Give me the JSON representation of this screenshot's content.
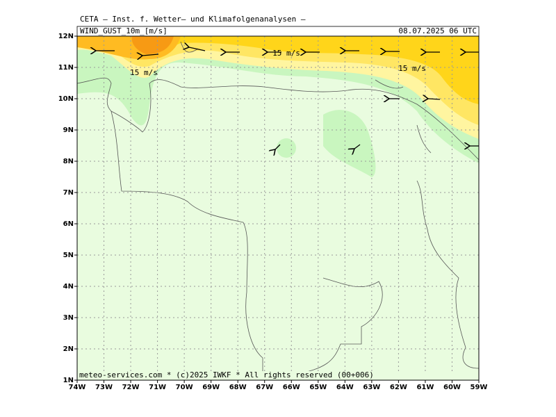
{
  "header": {
    "title": "CETA – Inst. f. Wetter– und Klimafolgenanalysen –",
    "variable": "WIND_GUST_10m_[m/s]",
    "time": "08.07.2025 06 UTC"
  },
  "axes": {
    "lon_labels": [
      "74W",
      "73W",
      "72W",
      "71W",
      "70W",
      "69W",
      "68W",
      "67W",
      "66W",
      "65W",
      "64W",
      "63W",
      "62W",
      "61W",
      "60W",
      "59W"
    ],
    "lat_labels": [
      "12N",
      "11N",
      "10N",
      "9N",
      "8N",
      "7N",
      "6N",
      "5N",
      "4N",
      "3N",
      "2N",
      "1N"
    ]
  },
  "contour_labels": [
    "15 m/s",
    "15 m/s",
    "15 m/s"
  ],
  "footer": "meteo-services.com * (c)2025 IWKF * All rights reserved (00+006)"
}
